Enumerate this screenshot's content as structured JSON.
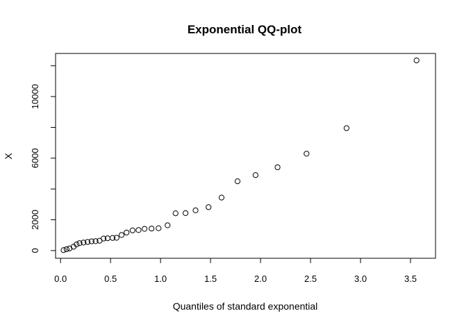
{
  "chart_data": {
    "type": "scatter",
    "title": "Exponential QQ-plot",
    "xlabel": "Quantiles of standard exponential",
    "ylabel": "X",
    "xlim": [
      -0.05,
      3.75
    ],
    "ylim": [
      -500,
      12800
    ],
    "x_ticks": [
      0.0,
      0.5,
      1.0,
      1.5,
      2.0,
      2.5,
      3.0,
      3.5
    ],
    "x_tick_labels": [
      "0.0",
      "0.5",
      "1.0",
      "1.5",
      "2.0",
      "2.5",
      "3.0",
      "3.5"
    ],
    "y_ticks": [
      0,
      2000,
      6000,
      10000
    ],
    "y_tick_labels": [
      "0",
      "2000",
      "6000",
      "10000"
    ],
    "y_minor_ticks": [
      4000,
      8000,
      12000
    ],
    "grid": false,
    "marker": "open-circle",
    "points": [
      {
        "x": 0.03,
        "y": 30
      },
      {
        "x": 0.06,
        "y": 90
      },
      {
        "x": 0.09,
        "y": 140
      },
      {
        "x": 0.13,
        "y": 250
      },
      {
        "x": 0.16,
        "y": 400
      },
      {
        "x": 0.19,
        "y": 480
      },
      {
        "x": 0.23,
        "y": 520
      },
      {
        "x": 0.27,
        "y": 560
      },
      {
        "x": 0.31,
        "y": 600
      },
      {
        "x": 0.35,
        "y": 610
      },
      {
        "x": 0.39,
        "y": 640
      },
      {
        "x": 0.43,
        "y": 780
      },
      {
        "x": 0.47,
        "y": 800
      },
      {
        "x": 0.52,
        "y": 820
      },
      {
        "x": 0.56,
        "y": 830
      },
      {
        "x": 0.61,
        "y": 1010
      },
      {
        "x": 0.66,
        "y": 1170
      },
      {
        "x": 0.72,
        "y": 1310
      },
      {
        "x": 0.78,
        "y": 1330
      },
      {
        "x": 0.84,
        "y": 1410
      },
      {
        "x": 0.91,
        "y": 1430
      },
      {
        "x": 0.98,
        "y": 1450
      },
      {
        "x": 1.07,
        "y": 1640
      },
      {
        "x": 1.15,
        "y": 2420
      },
      {
        "x": 1.25,
        "y": 2430
      },
      {
        "x": 1.35,
        "y": 2610
      },
      {
        "x": 1.48,
        "y": 2820
      },
      {
        "x": 1.61,
        "y": 3440
      },
      {
        "x": 1.77,
        "y": 4500
      },
      {
        "x": 1.95,
        "y": 4900
      },
      {
        "x": 2.17,
        "y": 5410
      },
      {
        "x": 2.46,
        "y": 6290
      },
      {
        "x": 2.86,
        "y": 7950
      },
      {
        "x": 3.56,
        "y": 12350
      }
    ]
  }
}
